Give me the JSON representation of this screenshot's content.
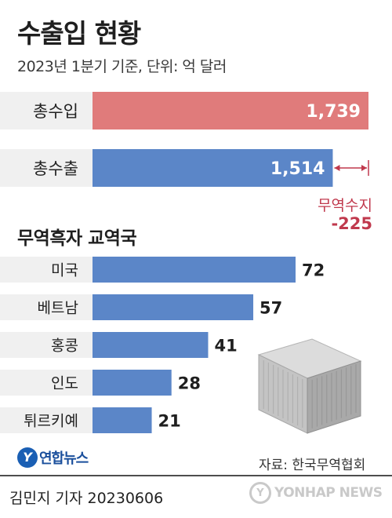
{
  "header": {
    "title": "수출입 현황",
    "subtitle": "2023년 1분기 기준, 단위: 억 달러"
  },
  "trade": {
    "import_label": "총수입",
    "export_label": "총수출",
    "import_value": "1,739",
    "export_value": "1,514",
    "balance_label": "무역수지",
    "balance_value": "-225"
  },
  "section": {
    "title": "무역흑자 교역국"
  },
  "source": "자료: 한국무역협회",
  "logo_text": "연합뉴스",
  "byline": "김민지 기자  20230606",
  "watermark": "YONHAP NEWS",
  "colors": {
    "import_bar": "#e07b7b",
    "export_bar": "#5b86c8",
    "country_bar": "#5b86c8",
    "balance_text": "#c0394d",
    "band": "#f0f0f0"
  },
  "chart_data": [
    {
      "type": "bar",
      "orientation": "horizontal",
      "categories": [
        "총수입",
        "총수출"
      ],
      "values": [
        1739,
        1514
      ],
      "annotation": "무역수지 -225"
    },
    {
      "type": "bar",
      "orientation": "horizontal",
      "title": "무역흑자 교역국",
      "categories": [
        "미국",
        "베트남",
        "홍콩",
        "인도",
        "튀르키예"
      ],
      "values": [
        72,
        57,
        41,
        28,
        21
      ]
    }
  ]
}
